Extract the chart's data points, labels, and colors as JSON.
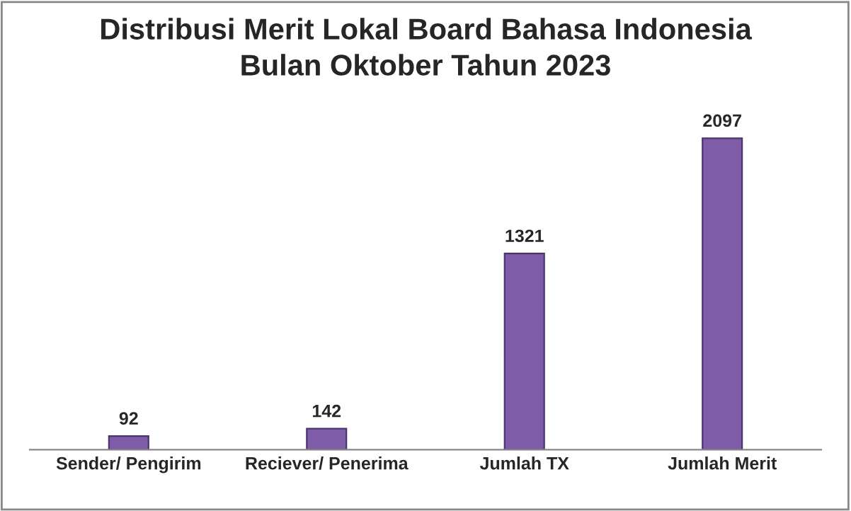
{
  "chart_data": {
    "type": "bar",
    "title": "Distribusi Merit Lokal Board Bahasa Indonesia\nBulan Oktober Tahun 2023",
    "categories": [
      "Sender/ Pengirim",
      "Reciever/ Penerima",
      "Jumlah TX",
      "Jumlah Merit"
    ],
    "values": [
      92,
      142,
      1321,
      2097
    ],
    "color": "#7e5ca8",
    "data_labels": true,
    "grid": false,
    "legend": false
  }
}
